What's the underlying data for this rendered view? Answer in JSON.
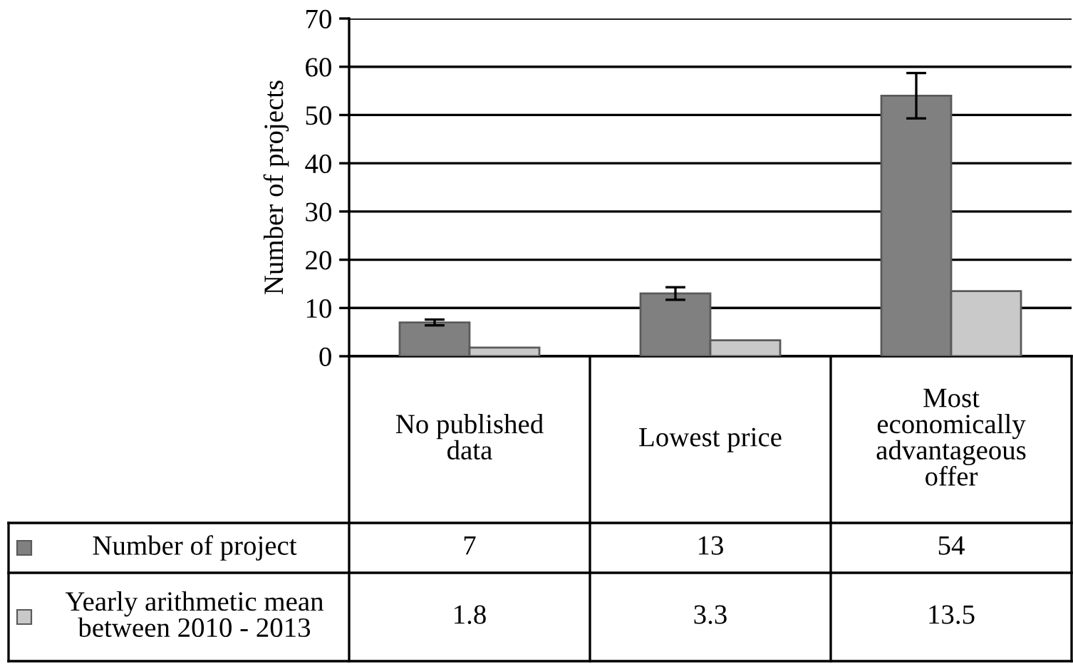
{
  "chart_data": {
    "type": "bar",
    "ylabel": "Number of projects",
    "categories": [
      "No published data",
      "Lowest price",
      "Most economically advantageous offer"
    ],
    "series": [
      {
        "name": "Number of project",
        "color": "#808080",
        "values": [
          7,
          13,
          54
        ],
        "errors": [
          0.6,
          1.3,
          4.7
        ]
      },
      {
        "name": "Yearly arithmetic mean between 2010 - 2013",
        "color": "#c8c9c8",
        "values": [
          1.8,
          3.3,
          13.5
        ]
      }
    ],
    "ylim": [
      0,
      70
    ],
    "yticks": [
      0,
      10,
      20,
      30,
      40,
      50,
      60,
      70
    ],
    "grid": "y",
    "data_labels": true,
    "legend": "bottom left"
  }
}
